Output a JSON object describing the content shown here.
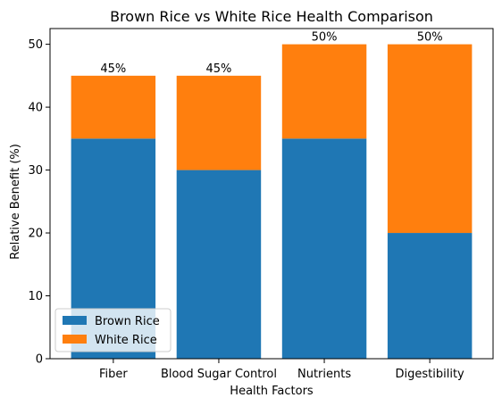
{
  "chart_data": {
    "type": "bar",
    "stacked": true,
    "title": "Brown Rice vs White Rice Health Comparison",
    "xlabel": "Health Factors",
    "ylabel": "Relative Benefit (%)",
    "categories": [
      "Fiber",
      "Blood Sugar Control",
      "Nutrients",
      "Digestibility"
    ],
    "series": [
      {
        "name": "Brown Rice",
        "values": [
          35,
          30,
          35,
          20
        ],
        "color": "#1f77b4"
      },
      {
        "name": "White Rice",
        "values": [
          10,
          15,
          15,
          30
        ],
        "color": "#ff7f0e"
      }
    ],
    "total_labels": [
      "45%",
      "45%",
      "50%",
      "50%"
    ],
    "ylim": [
      0,
      52.5
    ],
    "yticks": [
      0,
      10,
      20,
      30,
      40,
      50
    ],
    "grid": false,
    "legend_position": "lower-left"
  }
}
